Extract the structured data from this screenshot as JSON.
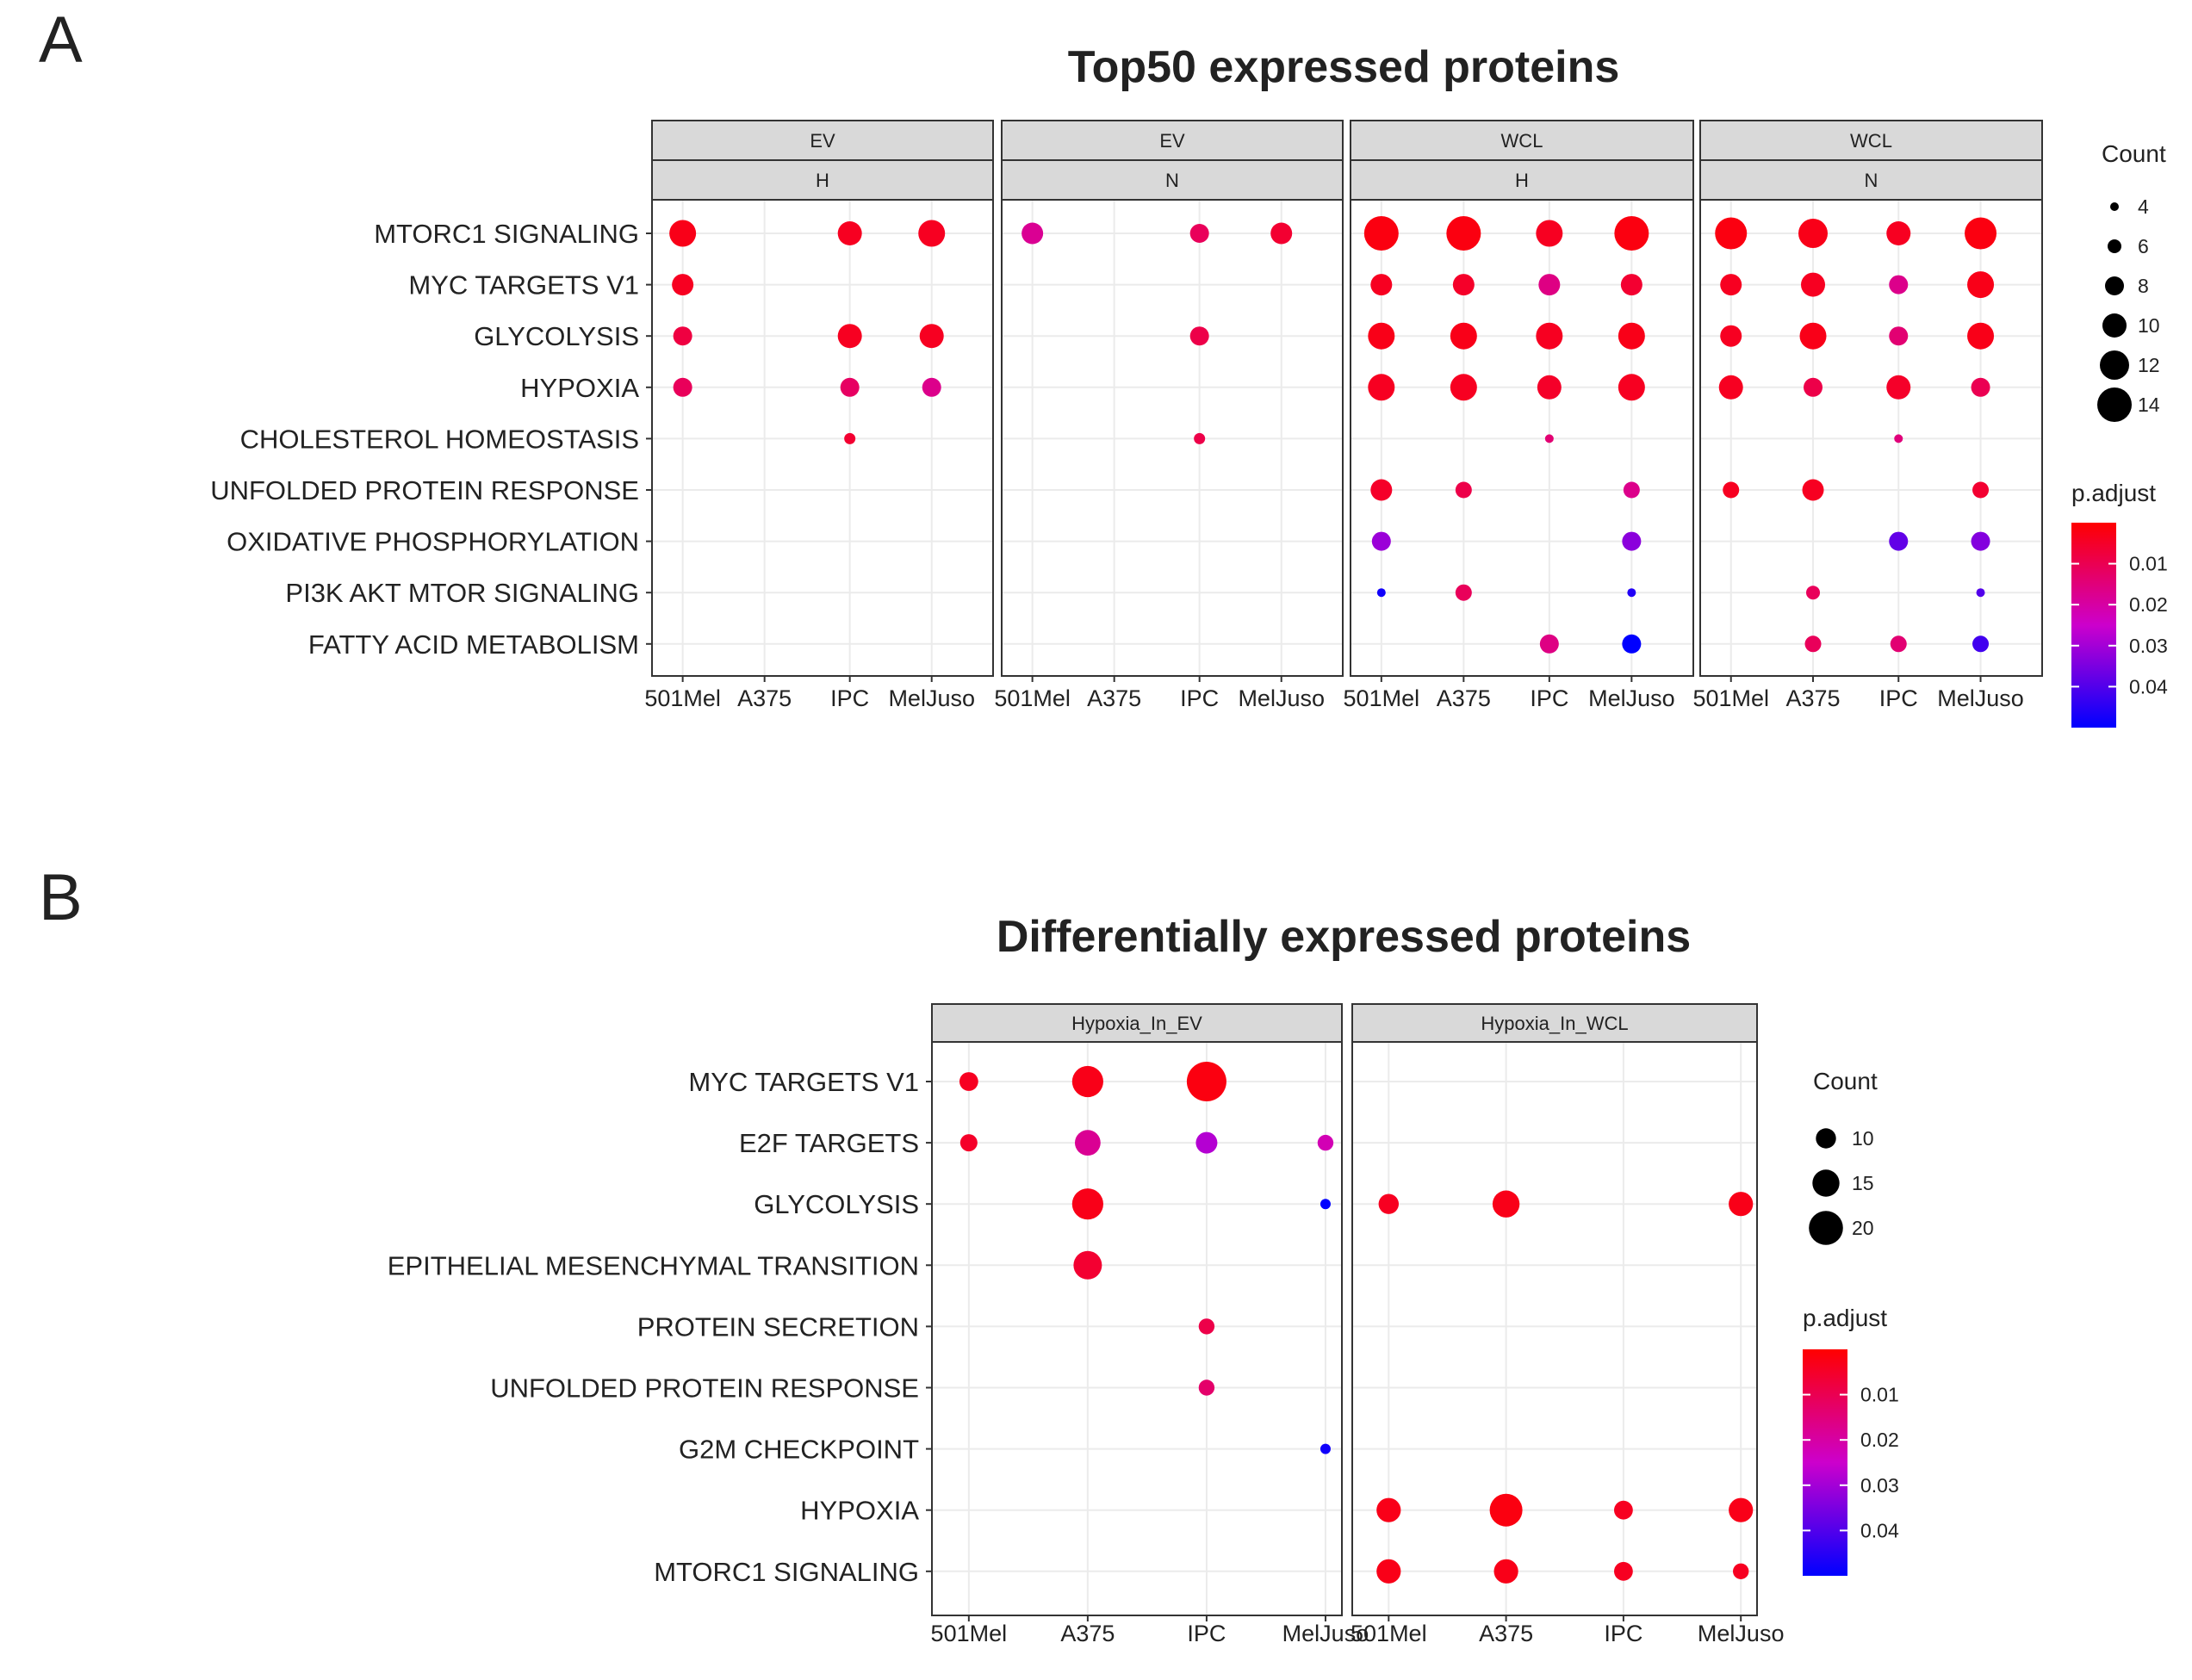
{
  "chart_data": [
    {
      "panel_label": "A",
      "type": "scatter",
      "title": "Top50 expressed proteins",
      "xlabel": "",
      "ylabel": "",
      "grid": true,
      "legend_position": "right",
      "categories_y": [
        "MTORC1 SIGNALING",
        "MYC TARGETS V1",
        "GLYCOLYSIS",
        "HYPOXIA",
        "CHOLESTEROL HOMEOSTASIS",
        "UNFOLDED PROTEIN RESPONSE",
        "OXIDATIVE PHOSPHORYLATION",
        "PI3K AKT MTOR SIGNALING",
        "FATTY ACID METABOLISM"
      ],
      "categories_x": [
        "501Mel",
        "A375",
        "IPC",
        "MelJuso"
      ],
      "facets": [
        {
          "strips": [
            "EV",
            "H"
          ],
          "points": [
            {
              "y": "MTORC1 SIGNALING",
              "x": "501Mel",
              "count": 11,
              "p_adjust": 0.003
            },
            {
              "y": "MTORC1 SIGNALING",
              "x": "IPC",
              "count": 10,
              "p_adjust": 0.004
            },
            {
              "y": "MTORC1 SIGNALING",
              "x": "MelJuso",
              "count": 11,
              "p_adjust": 0.004
            },
            {
              "y": "MYC TARGETS V1",
              "x": "501Mel",
              "count": 9,
              "p_adjust": 0.004
            },
            {
              "y": "GLYCOLYSIS",
              "x": "501Mel",
              "count": 8,
              "p_adjust": 0.008
            },
            {
              "y": "GLYCOLYSIS",
              "x": "IPC",
              "count": 10,
              "p_adjust": 0.004
            },
            {
              "y": "GLYCOLYSIS",
              "x": "MelJuso",
              "count": 10,
              "p_adjust": 0.004
            },
            {
              "y": "HYPOXIA",
              "x": "501Mel",
              "count": 8,
              "p_adjust": 0.011
            },
            {
              "y": "HYPOXIA",
              "x": "IPC",
              "count": 8,
              "p_adjust": 0.012
            },
            {
              "y": "HYPOXIA",
              "x": "MelJuso",
              "count": 8,
              "p_adjust": 0.017
            },
            {
              "y": "CHOLESTEROL HOMEOSTASIS",
              "x": "IPC",
              "count": 5,
              "p_adjust": 0.006
            }
          ]
        },
        {
          "strips": [
            "EV",
            "N"
          ],
          "points": [
            {
              "y": "MTORC1 SIGNALING",
              "x": "501Mel",
              "count": 9,
              "p_adjust": 0.018
            },
            {
              "y": "MTORC1 SIGNALING",
              "x": "IPC",
              "count": 8,
              "p_adjust": 0.011
            },
            {
              "y": "MTORC1 SIGNALING",
              "x": "MelJuso",
              "count": 9,
              "p_adjust": 0.006
            },
            {
              "y": "GLYCOLYSIS",
              "x": "IPC",
              "count": 8,
              "p_adjust": 0.009
            },
            {
              "y": "CHOLESTEROL HOMEOSTASIS",
              "x": "IPC",
              "count": 5,
              "p_adjust": 0.009
            }
          ]
        },
        {
          "strips": [
            "WCL",
            "H"
          ],
          "points": [
            {
              "y": "MTORC1 SIGNALING",
              "x": "501Mel",
              "count": 14,
              "p_adjust": 0.002
            },
            {
              "y": "MTORC1 SIGNALING",
              "x": "A375",
              "count": 14,
              "p_adjust": 0.002
            },
            {
              "y": "MTORC1 SIGNALING",
              "x": "IPC",
              "count": 11,
              "p_adjust": 0.004
            },
            {
              "y": "MTORC1 SIGNALING",
              "x": "MelJuso",
              "count": 14,
              "p_adjust": 0.002
            },
            {
              "y": "MYC TARGETS V1",
              "x": "501Mel",
              "count": 9,
              "p_adjust": 0.004
            },
            {
              "y": "MYC TARGETS V1",
              "x": "A375",
              "count": 9,
              "p_adjust": 0.005
            },
            {
              "y": "MYC TARGETS V1",
              "x": "IPC",
              "count": 9,
              "p_adjust": 0.016
            },
            {
              "y": "MYC TARGETS V1",
              "x": "MelJuso",
              "count": 9,
              "p_adjust": 0.006
            },
            {
              "y": "GLYCOLYSIS",
              "x": "501Mel",
              "count": 11,
              "p_adjust": 0.003
            },
            {
              "y": "GLYCOLYSIS",
              "x": "A375",
              "count": 11,
              "p_adjust": 0.003
            },
            {
              "y": "GLYCOLYSIS",
              "x": "IPC",
              "count": 11,
              "p_adjust": 0.004
            },
            {
              "y": "GLYCOLYSIS",
              "x": "MelJuso",
              "count": 11,
              "p_adjust": 0.003
            },
            {
              "y": "HYPOXIA",
              "x": "501Mel",
              "count": 11,
              "p_adjust": 0.004
            },
            {
              "y": "HYPOXIA",
              "x": "A375",
              "count": 11,
              "p_adjust": 0.004
            },
            {
              "y": "HYPOXIA",
              "x": "IPC",
              "count": 10,
              "p_adjust": 0.005
            },
            {
              "y": "HYPOXIA",
              "x": "MelJuso",
              "count": 11,
              "p_adjust": 0.004
            },
            {
              "y": "CHOLESTEROL HOMEOSTASIS",
              "x": "IPC",
              "count": 4,
              "p_adjust": 0.014
            },
            {
              "y": "UNFOLDED PROTEIN RESPONSE",
              "x": "501Mel",
              "count": 9,
              "p_adjust": 0.005
            },
            {
              "y": "UNFOLDED PROTEIN RESPONSE",
              "x": "A375",
              "count": 7,
              "p_adjust": 0.009
            },
            {
              "y": "UNFOLDED PROTEIN RESPONSE",
              "x": "MelJuso",
              "count": 7,
              "p_adjust": 0.017
            },
            {
              "y": "OXIDATIVE PHOSPHORYLATION",
              "x": "501Mel",
              "count": 8,
              "p_adjust": 0.031
            },
            {
              "y": "OXIDATIVE PHOSPHORYLATION",
              "x": "MelJuso",
              "count": 8,
              "p_adjust": 0.033
            },
            {
              "y": "PI3K AKT MTOR SIGNALING",
              "x": "501Mel",
              "count": 4,
              "p_adjust": 0.048
            },
            {
              "y": "PI3K AKT MTOR SIGNALING",
              "x": "A375",
              "count": 7,
              "p_adjust": 0.011
            },
            {
              "y": "PI3K AKT MTOR SIGNALING",
              "x": "MelJuso",
              "count": 4,
              "p_adjust": 0.046
            },
            {
              "y": "FATTY ACID METABOLISM",
              "x": "IPC",
              "count": 8,
              "p_adjust": 0.016
            },
            {
              "y": "FATTY ACID METABOLISM",
              "x": "MelJuso",
              "count": 8,
              "p_adjust": 0.05
            }
          ]
        },
        {
          "strips": [
            "WCL",
            "N"
          ],
          "points": [
            {
              "y": "MTORC1 SIGNALING",
              "x": "501Mel",
              "count": 13,
              "p_adjust": 0.002
            },
            {
              "y": "MTORC1 SIGNALING",
              "x": "A375",
              "count": 12,
              "p_adjust": 0.003
            },
            {
              "y": "MTORC1 SIGNALING",
              "x": "IPC",
              "count": 10,
              "p_adjust": 0.004
            },
            {
              "y": "MTORC1 SIGNALING",
              "x": "MelJuso",
              "count": 13,
              "p_adjust": 0.002
            },
            {
              "y": "MYC TARGETS V1",
              "x": "501Mel",
              "count": 9,
              "p_adjust": 0.004
            },
            {
              "y": "MYC TARGETS V1",
              "x": "A375",
              "count": 10,
              "p_adjust": 0.004
            },
            {
              "y": "MYC TARGETS V1",
              "x": "IPC",
              "count": 8,
              "p_adjust": 0.017
            },
            {
              "y": "MYC TARGETS V1",
              "x": "MelJuso",
              "count": 11,
              "p_adjust": 0.003
            },
            {
              "y": "GLYCOLYSIS",
              "x": "501Mel",
              "count": 9,
              "p_adjust": 0.004
            },
            {
              "y": "GLYCOLYSIS",
              "x": "A375",
              "count": 11,
              "p_adjust": 0.003
            },
            {
              "y": "GLYCOLYSIS",
              "x": "IPC",
              "count": 8,
              "p_adjust": 0.014
            },
            {
              "y": "GLYCOLYSIS",
              "x": "MelJuso",
              "count": 11,
              "p_adjust": 0.003
            },
            {
              "y": "HYPOXIA",
              "x": "501Mel",
              "count": 10,
              "p_adjust": 0.004
            },
            {
              "y": "HYPOXIA",
              "x": "A375",
              "count": 8,
              "p_adjust": 0.009
            },
            {
              "y": "HYPOXIA",
              "x": "IPC",
              "count": 10,
              "p_adjust": 0.005
            },
            {
              "y": "HYPOXIA",
              "x": "MelJuso",
              "count": 8,
              "p_adjust": 0.01
            },
            {
              "y": "CHOLESTEROL HOMEOSTASIS",
              "x": "IPC",
              "count": 4,
              "p_adjust": 0.015
            },
            {
              "y": "UNFOLDED PROTEIN RESPONSE",
              "x": "501Mel",
              "count": 7,
              "p_adjust": 0.004
            },
            {
              "y": "UNFOLDED PROTEIN RESPONSE",
              "x": "A375",
              "count": 9,
              "p_adjust": 0.004
            },
            {
              "y": "UNFOLDED PROTEIN RESPONSE",
              "x": "MelJuso",
              "count": 7,
              "p_adjust": 0.006
            },
            {
              "y": "OXIDATIVE PHOSPHORYLATION",
              "x": "IPC",
              "count": 8,
              "p_adjust": 0.038
            },
            {
              "y": "OXIDATIVE PHOSPHORYLATION",
              "x": "MelJuso",
              "count": 8,
              "p_adjust": 0.034
            },
            {
              "y": "PI3K AKT MTOR SIGNALING",
              "x": "A375",
              "count": 6,
              "p_adjust": 0.011
            },
            {
              "y": "PI3K AKT MTOR SIGNALING",
              "x": "MelJuso",
              "count": 4,
              "p_adjust": 0.04
            },
            {
              "y": "FATTY ACID METABOLISM",
              "x": "A375",
              "count": 7,
              "p_adjust": 0.011
            },
            {
              "y": "FATTY ACID METABOLISM",
              "x": "IPC",
              "count": 7,
              "p_adjust": 0.014
            },
            {
              "y": "FATTY ACID METABOLISM",
              "x": "MelJuso",
              "count": 7,
              "p_adjust": 0.042
            }
          ]
        }
      ],
      "size_legend": {
        "title": "Count",
        "values": [
          4,
          6,
          8,
          10,
          12,
          14
        ]
      },
      "color_legend": {
        "title": "p.adjust",
        "ticks": [
          0.01,
          0.02,
          0.03,
          0.04
        ],
        "low_color": "#ff0000",
        "mid_color": "#cc00cc",
        "high_color": "#0000ff",
        "range": [
          0,
          0.05
        ]
      }
    },
    {
      "panel_label": "B",
      "type": "scatter",
      "title": "Differentially expressed proteins",
      "xlabel": "",
      "ylabel": "",
      "grid": true,
      "legend_position": "right",
      "categories_y": [
        "MYC TARGETS V1",
        "E2F TARGETS",
        "GLYCOLYSIS",
        "EPITHELIAL MESENCHYMAL TRANSITION",
        "PROTEIN SECRETION",
        "UNFOLDED PROTEIN RESPONSE",
        "G2M CHECKPOINT",
        "HYPOXIA",
        "MTORC1 SIGNALING"
      ],
      "categories_x": [
        "501Mel",
        "A375",
        "IPC",
        "MelJuso"
      ],
      "facets": [
        {
          "strips": [
            "Hypoxia_In_EV"
          ],
          "points": [
            {
              "y": "MYC TARGETS V1",
              "x": "501Mel",
              "count": 9,
              "p_adjust": 0.004
            },
            {
              "y": "MYC TARGETS V1",
              "x": "A375",
              "count": 18,
              "p_adjust": 0.003
            },
            {
              "y": "MYC TARGETS V1",
              "x": "IPC",
              "count": 24,
              "p_adjust": 0.002
            },
            {
              "y": "E2F TARGETS",
              "x": "501Mel",
              "count": 8,
              "p_adjust": 0.005
            },
            {
              "y": "E2F TARGETS",
              "x": "A375",
              "count": 14,
              "p_adjust": 0.018
            },
            {
              "y": "E2F TARGETS",
              "x": "IPC",
              "count": 11,
              "p_adjust": 0.028
            },
            {
              "y": "E2F TARGETS",
              "x": "MelJuso",
              "count": 7,
              "p_adjust": 0.022
            },
            {
              "y": "GLYCOLYSIS",
              "x": "A375",
              "count": 18,
              "p_adjust": 0.003
            },
            {
              "y": "GLYCOLYSIS",
              "x": "MelJuso",
              "count": 3,
              "p_adjust": 0.05
            },
            {
              "y": "EPITHELIAL MESENCHYMAL TRANSITION",
              "x": "A375",
              "count": 16,
              "p_adjust": 0.006
            },
            {
              "y": "PROTEIN SECRETION",
              "x": "IPC",
              "count": 7,
              "p_adjust": 0.009
            },
            {
              "y": "UNFOLDED PROTEIN RESPONSE",
              "x": "IPC",
              "count": 7,
              "p_adjust": 0.013
            },
            {
              "y": "G2M CHECKPOINT",
              "x": "MelJuso",
              "count": 3,
              "p_adjust": 0.048
            }
          ]
        },
        {
          "strips": [
            "Hypoxia_In_WCL"
          ],
          "points": [
            {
              "y": "GLYCOLYSIS",
              "x": "501Mel",
              "count": 10,
              "p_adjust": 0.004
            },
            {
              "y": "GLYCOLYSIS",
              "x": "A375",
              "count": 15,
              "p_adjust": 0.003
            },
            {
              "y": "GLYCOLYSIS",
              "x": "MelJuso",
              "count": 13,
              "p_adjust": 0.003
            },
            {
              "y": "HYPOXIA",
              "x": "501Mel",
              "count": 13,
              "p_adjust": 0.003
            },
            {
              "y": "HYPOXIA",
              "x": "A375",
              "count": 19,
              "p_adjust": 0.002
            },
            {
              "y": "HYPOXIA",
              "x": "IPC",
              "count": 9,
              "p_adjust": 0.004
            },
            {
              "y": "HYPOXIA",
              "x": "MelJuso",
              "count": 13,
              "p_adjust": 0.003
            },
            {
              "y": "MTORC1 SIGNALING",
              "x": "501Mel",
              "count": 13,
              "p_adjust": 0.003
            },
            {
              "y": "MTORC1 SIGNALING",
              "x": "A375",
              "count": 13,
              "p_adjust": 0.003
            },
            {
              "y": "MTORC1 SIGNALING",
              "x": "IPC",
              "count": 9,
              "p_adjust": 0.004
            },
            {
              "y": "MTORC1 SIGNALING",
              "x": "MelJuso",
              "count": 7,
              "p_adjust": 0.004
            }
          ]
        }
      ],
      "size_legend": {
        "title": "Count",
        "values": [
          10,
          15,
          20
        ]
      },
      "color_legend": {
        "title": "p.adjust",
        "ticks": [
          0.01,
          0.02,
          0.03,
          0.04
        ],
        "low_color": "#ff0000",
        "mid_color": "#cc00cc",
        "high_color": "#0000ff",
        "range": [
          0,
          0.05
        ]
      }
    }
  ]
}
